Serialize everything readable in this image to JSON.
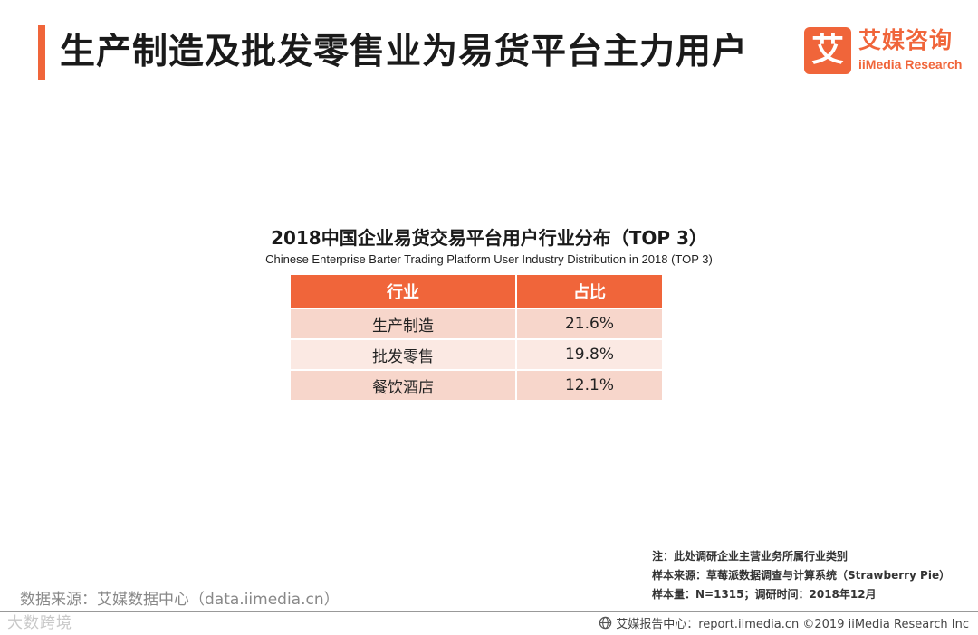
{
  "header": {
    "title": "生产制造及批发零售业为易货平台主力用户"
  },
  "logo": {
    "mark": "艾",
    "cn": "艾媒咨询",
    "en": "iiMedia Research"
  },
  "chart_data": {
    "type": "table",
    "title": "2018中国企业易货交易平台用户行业分布（TOP 3）",
    "subtitle": "Chinese Enterprise Barter Trading Platform User Industry Distribution in 2018 (TOP 3)",
    "columns": [
      "行业",
      "占比"
    ],
    "rows": [
      {
        "industry": "生产制造",
        "share": "21.6%"
      },
      {
        "industry": "批发零售",
        "share": "19.8%"
      },
      {
        "industry": "餐饮酒店",
        "share": "12.1%"
      }
    ],
    "colors": {
      "header": "#f0653a",
      "row_odd": "#f7d6cb",
      "row_even": "#fbe9e3"
    }
  },
  "notes": {
    "note": "注：此处调研企业主营业务所属行业类别",
    "sample_source": "样本来源：草莓派数据调查与计算系统（Strawberry  Pie）",
    "sample_size": "样本量：N=1315；调研时间：2018年12月"
  },
  "source": "数据来源：艾媒数据中心（data.iimedia.cn）",
  "watermark": "大数跨境",
  "footer": {
    "icon": "globe-icon",
    "text": "艾媒报告中心：report.iimedia.cn  ©2019  iiMedia Research  Inc"
  }
}
